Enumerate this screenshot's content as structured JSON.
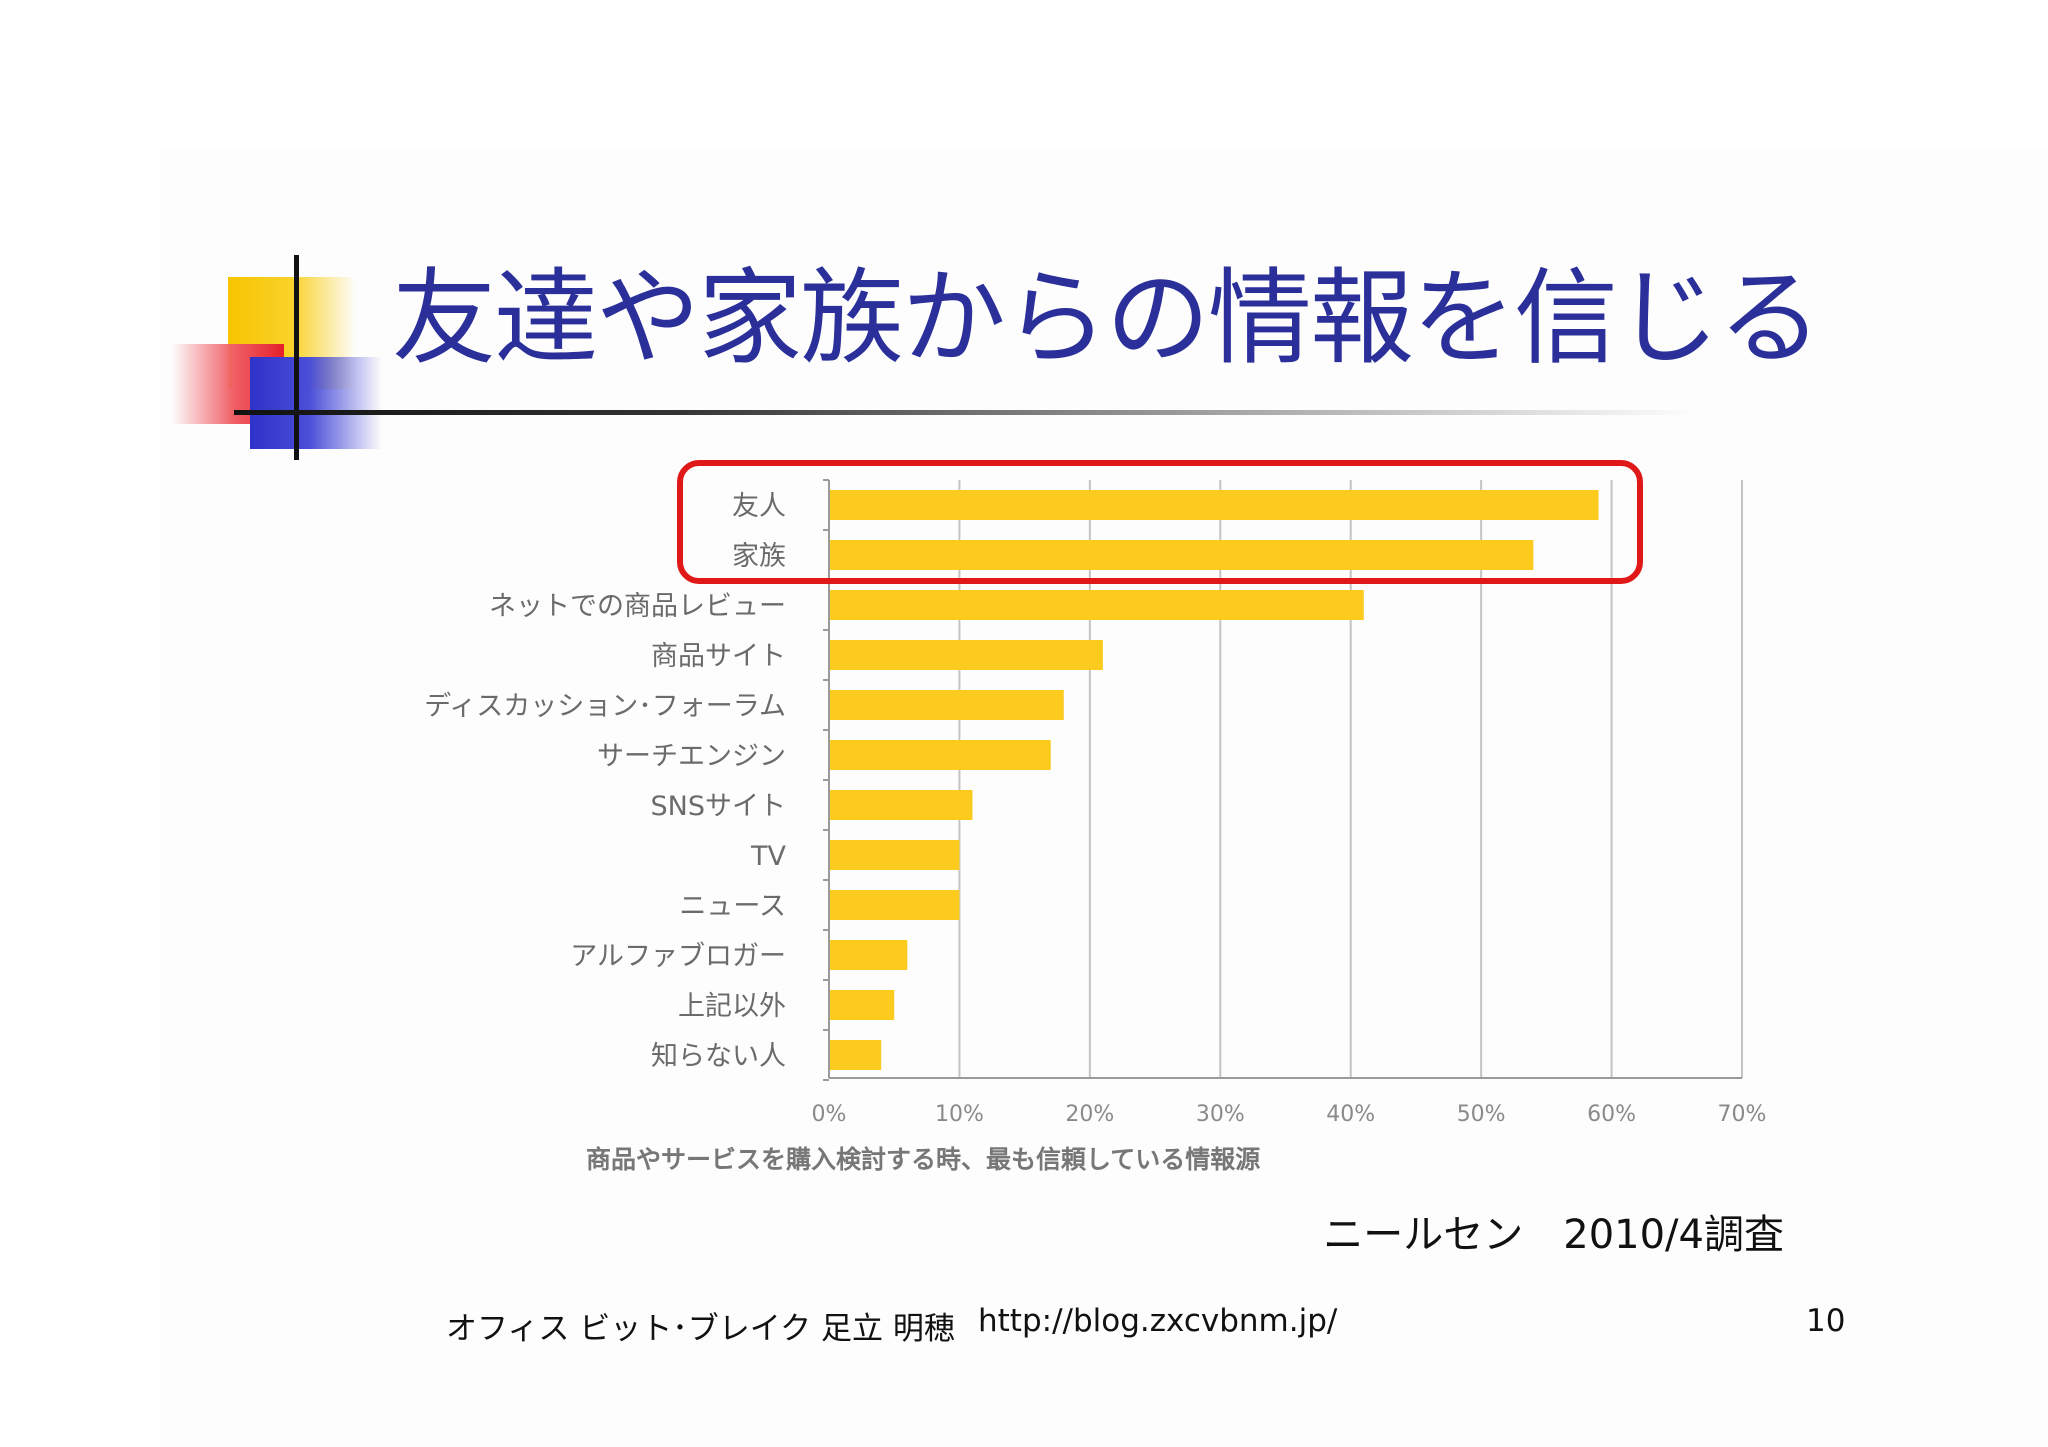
{
  "slide": {
    "title": "友達や家族からの情報を信じる",
    "source_note": "ニールセン　2010/4調査",
    "footer": {
      "author": "オフィス ビット･ブレイク 足立 明穂",
      "url": "http://blog.zxcvbnm.jp/",
      "page_number": "10"
    }
  },
  "colors": {
    "bar": "#fccb1e",
    "highlight": "#e01818",
    "title": "#2a2f9a"
  },
  "chart_data": {
    "type": "bar",
    "orientation": "horizontal",
    "title": "",
    "xlabel": "商品やサービスを購入検討する時、最も信頼している情報源",
    "ylabel": "",
    "categories": [
      "友人",
      "家族",
      "ネットでの商品レビュー",
      "商品サイト",
      "ディスカッション･フォーラム",
      "サーチエンジン",
      "SNSサイト",
      "TV",
      "ニュース",
      "アルファブロガー",
      "上記以外",
      "知らない人"
    ],
    "values": [
      59,
      54,
      41,
      21,
      18,
      17,
      11,
      10,
      10,
      6,
      5,
      4
    ],
    "xlim": [
      0,
      70
    ],
    "ticks": [
      0,
      10,
      20,
      30,
      40,
      50,
      60,
      70
    ],
    "tick_labels": [
      "0%",
      "10%",
      "20%",
      "30%",
      "40%",
      "50%",
      "60%",
      "70%"
    ],
    "grid": true,
    "highlighted_categories": [
      "友人",
      "家族"
    ]
  }
}
